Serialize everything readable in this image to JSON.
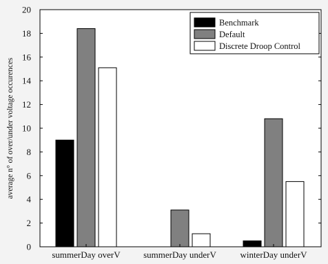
{
  "chart_data": {
    "type": "bar",
    "categories": [
      "summerDay overV",
      "summerDay underV",
      "winterDay underV"
    ],
    "series": [
      {
        "name": "Benchmark",
        "values": [
          9.0,
          0.0,
          0.5
        ],
        "color": "#000000"
      },
      {
        "name": "Default",
        "values": [
          18.4,
          3.1,
          10.8
        ],
        "color": "#808080"
      },
      {
        "name": "Discrete Droop Control",
        "values": [
          15.1,
          1.1,
          5.5
        ],
        "color": "#ffffff"
      }
    ],
    "title": "",
    "xlabel": "",
    "ylabel": "average n° of over/under voltage occurences",
    "ylim": [
      0,
      20
    ],
    "yticks": [
      0,
      2,
      4,
      6,
      8,
      10,
      12,
      14,
      16,
      18,
      20
    ],
    "grid": false,
    "legend_position": "top-right"
  }
}
